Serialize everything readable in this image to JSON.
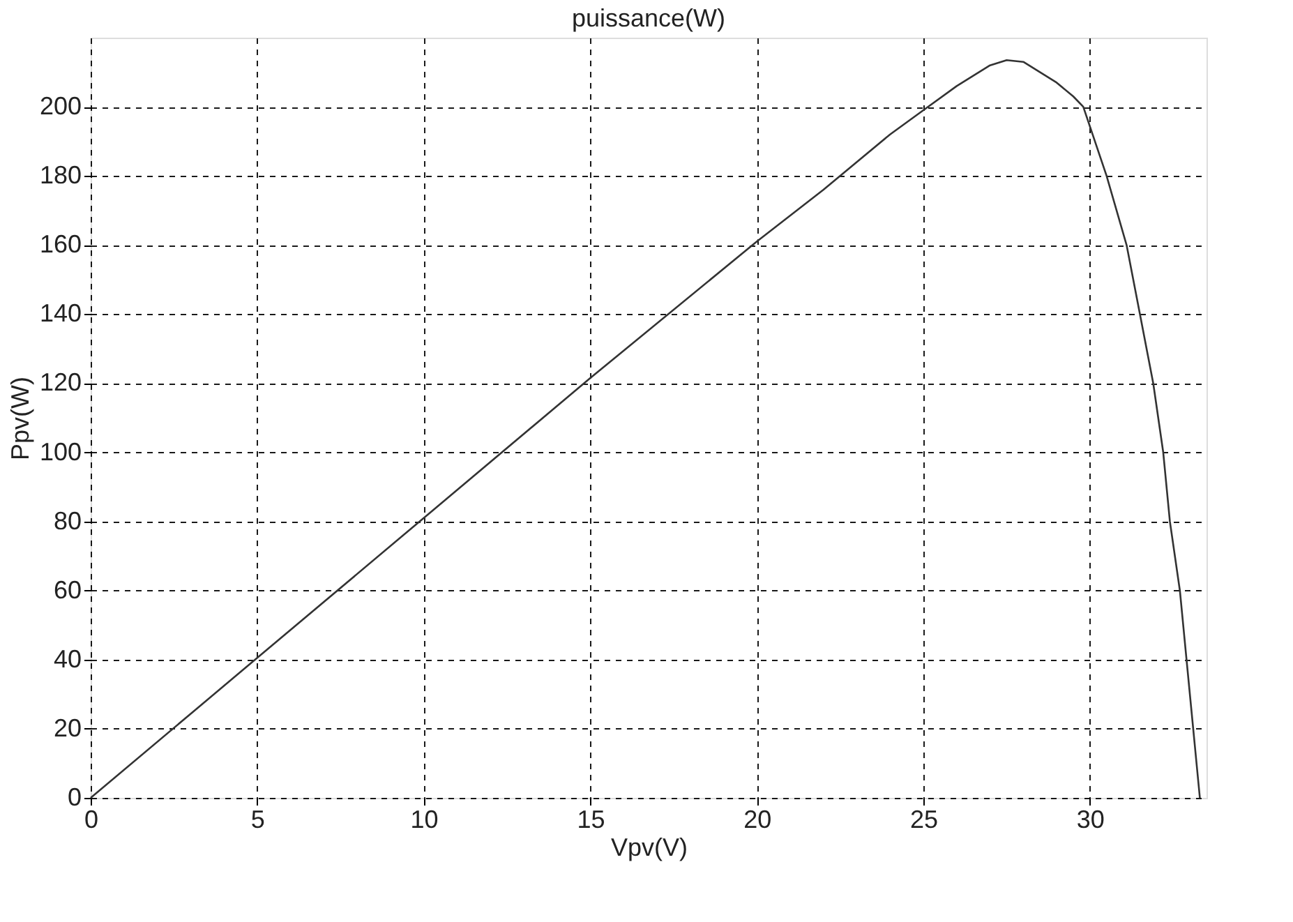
{
  "chart_data": {
    "type": "line",
    "title": "puissance(W)",
    "xlabel": "Vpv(V)",
    "ylabel": "Ppv(W)",
    "x": [
      0,
      5,
      10,
      15,
      20,
      22,
      24,
      25,
      26,
      27,
      27.5,
      28,
      29,
      29.5,
      29.8,
      30.5,
      31.1,
      31.5,
      31.9,
      32.2,
      32.4,
      32.7,
      32.9,
      33.1,
      33.3
    ],
    "series": [
      {
        "color": "#333333",
        "values": [
          0,
          40.5,
          81,
          121.5,
          161,
          176,
          192,
          199,
          206,
          212,
          213.5,
          213,
          207,
          203,
          200,
          180,
          160,
          140,
          120,
          100,
          80,
          60,
          40,
          20,
          0
        ]
      }
    ],
    "xlim": [
      0,
      33.5
    ],
    "ylim": [
      0,
      220
    ],
    "xticks": [
      0,
      5,
      10,
      15,
      20,
      25,
      30
    ],
    "yticks": [
      0,
      20,
      40,
      60,
      80,
      100,
      120,
      140,
      160,
      180,
      200
    ],
    "grid": true,
    "line_style": "solid",
    "marker": "none"
  }
}
